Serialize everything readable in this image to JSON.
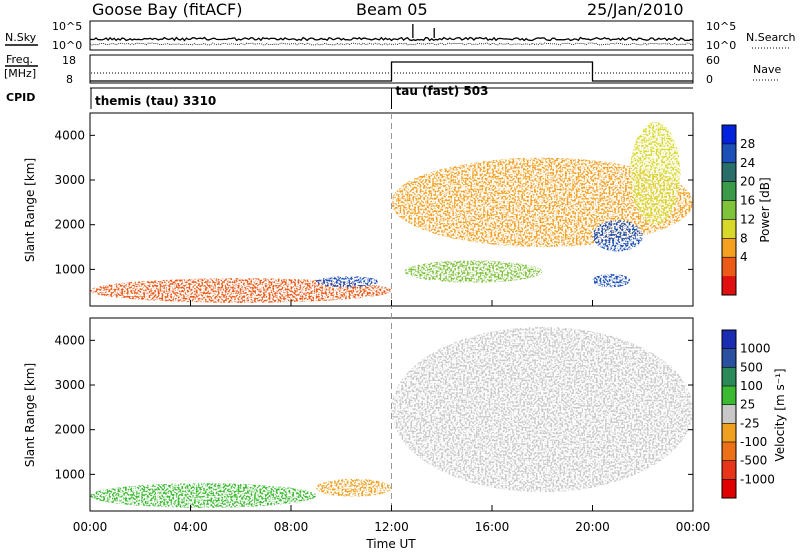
{
  "header": {
    "station": "Goose Bay (fitACF)",
    "beam": "Beam 05",
    "date": "25/Jan/2010"
  },
  "side_labels": {
    "nsky": "N.Sky",
    "nsearch": "N.Search",
    "freq_line1": "Freq.",
    "freq_line2": "[MHz]",
    "nave": "Nave",
    "cpid": "CPID"
  },
  "noise_panel": {
    "left_ticks": [
      "10^5",
      "10^0"
    ],
    "right_ticks": [
      "10^5",
      "10^0"
    ]
  },
  "freq_panel": {
    "left_ticks": [
      "18",
      "8"
    ],
    "right_ticks": [
      "60",
      "0"
    ],
    "nave_steps": [
      {
        "start": "00:00",
        "end": "12:00",
        "value": 0
      },
      {
        "start": "12:00",
        "end": "20:00",
        "value": 60
      },
      {
        "start": "20:00",
        "end": "24:00",
        "value": 0
      }
    ]
  },
  "cpid_panel": {
    "modes": [
      {
        "label": "themis (tau) 3310",
        "start": "00:00"
      },
      {
        "label": "tau (fast) 503",
        "start": "12:00"
      }
    ]
  },
  "power_panel": {
    "ylabel": "Slant Range [km]",
    "colorbar_label": "Power [dB]",
    "colorbar_ticks": [
      "28",
      "24",
      "20",
      "16",
      "12",
      "8",
      "4"
    ]
  },
  "velocity_panel": {
    "ylabel": "Slant Range [km]",
    "colorbar_label": "Velocity [m s⁻¹]",
    "colorbar_ticks": [
      "1000",
      "500",
      "100",
      "25",
      "-25",
      "-100",
      "-500",
      "-1000"
    ]
  },
  "x_axis": {
    "title": "Time UT",
    "ticks": [
      "00:00",
      "04:00",
      "08:00",
      "12:00",
      "16:00",
      "20:00",
      "00:00"
    ]
  },
  "chart_data": [
    {
      "type": "heatmap",
      "title": "Power",
      "x_range": [
        "00:00",
        "24:00"
      ],
      "ylim": [
        180,
        4500
      ],
      "yticks": [
        1000,
        2000,
        3000,
        4000
      ],
      "colorbar": {
        "label": "Power [dB]",
        "range": [
          0,
          30
        ],
        "ticks": [
          4,
          8,
          12,
          16,
          20,
          24,
          28
        ],
        "colors": [
          "#0022dd",
          "#1c4fb8",
          "#2a6e6a",
          "#3a9a4a",
          "#7fc23c",
          "#d8d82a",
          "#f4a020",
          "#ec5a18",
          "#e01010"
        ]
      },
      "regions": [
        {
          "t_start": 0.0,
          "t_end": 12.0,
          "r_start": 250,
          "r_end": 800,
          "level_dB": 6
        },
        {
          "t_start": 9.0,
          "t_end": 11.5,
          "r_start": 600,
          "r_end": 850,
          "level_dB": 26
        },
        {
          "t_start": 12.0,
          "t_end": 24.0,
          "r_start": 1500,
          "r_end": 3500,
          "level_dB": 8
        },
        {
          "t_start": 12.5,
          "t_end": 18.0,
          "r_start": 700,
          "r_end": 1200,
          "level_dB": 14
        },
        {
          "t_start": 20.0,
          "t_end": 22.0,
          "r_start": 1400,
          "r_end": 2100,
          "level_dB": 24
        },
        {
          "t_start": 20.0,
          "t_end": 21.5,
          "r_start": 600,
          "r_end": 900,
          "level_dB": 26
        },
        {
          "t_start": 21.5,
          "t_end": 23.5,
          "r_start": 2000,
          "r_end": 4300,
          "level_dB": 12
        }
      ]
    },
    {
      "type": "heatmap",
      "title": "Velocity",
      "x_range": [
        "00:00",
        "24:00"
      ],
      "ylim": [
        180,
        4500
      ],
      "yticks": [
        1000,
        2000,
        3000,
        4000
      ],
      "colorbar": {
        "label": "Velocity [m s⁻¹]",
        "range": [
          -1000,
          1000
        ],
        "ticks": [
          1000,
          500,
          100,
          25,
          -25,
          -100,
          -500,
          -1000
        ],
        "colors": [
          "#1a2cb0",
          "#2a50a0",
          "#2a8a5a",
          "#3cba32",
          "#c8c8c8",
          "#f0a020",
          "#ec7018",
          "#e83418",
          "#e00000"
        ]
      },
      "regions": [
        {
          "t_start": 0.0,
          "t_end": 9.0,
          "r_start": 250,
          "r_end": 800,
          "velocity": 80
        },
        {
          "t_start": 9.0,
          "t_end": 12.0,
          "r_start": 500,
          "r_end": 900,
          "velocity": -60
        },
        {
          "t_start": 12.0,
          "t_end": 24.0,
          "r_start": 600,
          "r_end": 4300,
          "velocity": 0
        }
      ]
    }
  ]
}
